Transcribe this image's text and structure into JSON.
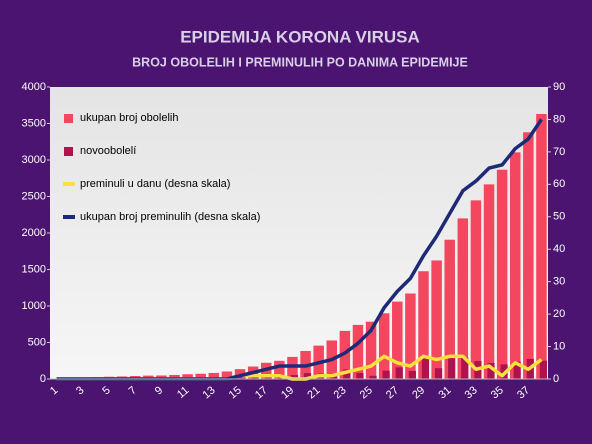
{
  "chart_data": {
    "type": "combo",
    "title": "EPIDEMIJA KORONA VIRUSA",
    "subtitle": "BROJ OBOLELIH I PREMINULIH PO DANIMA EPIDEMIJE",
    "categories": [
      1,
      null,
      3,
      null,
      5,
      null,
      7,
      null,
      9,
      null,
      11,
      null,
      13,
      null,
      15,
      null,
      17,
      null,
      19,
      null,
      21,
      null,
      23,
      null,
      25,
      null,
      27,
      null,
      29,
      null,
      31,
      null,
      33,
      null,
      35,
      null,
      37,
      null
    ],
    "series": [
      {
        "name": "ukupan broj obolelih",
        "type": "bar",
        "color": "#f4465e",
        "values": [
          5,
          12,
          19,
          24,
          31,
          35,
          41,
          46,
          48,
          55,
          65,
          72,
          83,
          103,
          135,
          171,
          222,
          249,
          303,
          384,
          457,
          528,
          659,
          741,
          785,
          900,
          1060,
          1171,
          1476,
          1624,
          1908,
          2200,
          2447,
          2666,
          2867,
          3105,
          3380,
          3630
        ]
      },
      {
        "name": "novoobolelí",
        "type": "bar",
        "color": "#b0124e",
        "values": [
          5,
          7,
          7,
          5,
          7,
          4,
          6,
          5,
          2,
          7,
          10,
          7,
          11,
          20,
          32,
          36,
          51,
          27,
          54,
          81,
          73,
          71,
          131,
          82,
          44,
          115,
          160,
          111,
          305,
          148,
          284,
          292,
          247,
          219,
          201,
          238,
          275,
          250
        ]
      },
      {
        "name": "preminuli u danu (desna skala)",
        "type": "line",
        "axis": "y2",
        "color": "#f7e13a",
        "values": [
          0,
          0,
          0,
          0,
          0,
          0,
          0,
          0,
          0,
          0,
          0,
          0,
          0,
          0,
          1,
          1,
          1,
          1,
          0,
          0,
          1,
          1,
          2,
          3,
          4,
          7,
          5,
          4,
          7,
          6,
          7,
          7,
          3,
          4,
          1,
          5,
          3,
          6
        ]
      },
      {
        "name": "ukupan broj preminulih (desna skala)",
        "type": "line",
        "axis": "y2",
        "color": "#1e2a78",
        "values": [
          0,
          0,
          0,
          0,
          0,
          0,
          0,
          0,
          0,
          0,
          0,
          0,
          0,
          0,
          1,
          2,
          3,
          4,
          4,
          4,
          5,
          6,
          8,
          11,
          15,
          22,
          27,
          31,
          38,
          44,
          51,
          58,
          61,
          65,
          66,
          71,
          74,
          80
        ]
      }
    ],
    "ylim": [
      0,
      4000
    ],
    "yticks": [
      0,
      500,
      1000,
      1500,
      2000,
      2500,
      3000,
      3500,
      4000
    ],
    "y2lim": [
      0,
      90
    ],
    "y2ticks": [
      0,
      10,
      20,
      30,
      40,
      50,
      60,
      70,
      80,
      90
    ],
    "legend": "top-left"
  }
}
